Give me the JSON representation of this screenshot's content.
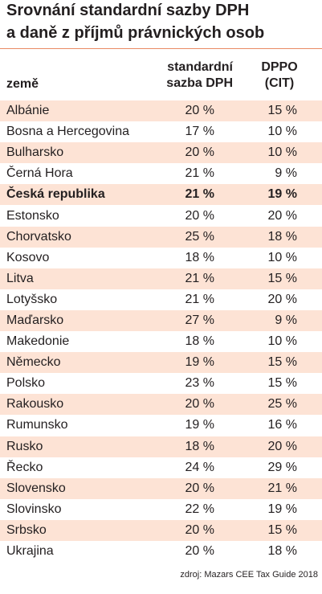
{
  "title": {
    "lines": [
      "Srovnání standardní sazby DPH",
      "a daně z příjmů právnických osob"
    ]
  },
  "colors": {
    "stripe": "#fde3d5",
    "rule": "#e98a64",
    "text": "#231f20"
  },
  "table": {
    "headers": {
      "country": "země",
      "vat": [
        "standardní",
        "sazba DPH"
      ],
      "cit": [
        "DPPO",
        "(CIT)"
      ]
    },
    "rows": [
      {
        "country": "Albánie",
        "vat": "20 %",
        "cit": "15 %"
      },
      {
        "country": "Bosna a Hercegovina",
        "vat": "17 %",
        "cit": "10 %"
      },
      {
        "country": "Bulharsko",
        "vat": "20 %",
        "cit": "10 %"
      },
      {
        "country": "Černá Hora",
        "vat": "21 %",
        "cit": "9 %"
      },
      {
        "country": "Česká republika",
        "vat": "21 %",
        "cit": "19 %",
        "emphasis": true
      },
      {
        "country": "Estonsko",
        "vat": "20 %",
        "cit": "20 %"
      },
      {
        "country": "Chorvatsko",
        "vat": "25 %",
        "cit": "18 %"
      },
      {
        "country": "Kosovo",
        "vat": "18 %",
        "cit": "10 %"
      },
      {
        "country": "Litva",
        "vat": "21 %",
        "cit": "15 %"
      },
      {
        "country": "Lotyšsko",
        "vat": "21 %",
        "cit": "20 %"
      },
      {
        "country": "Maďarsko",
        "vat": "27 %",
        "cit": "9 %"
      },
      {
        "country": "Makedonie",
        "vat": "18 %",
        "cit": "10 %"
      },
      {
        "country": "Německo",
        "vat": "19 %",
        "cit": "15 %"
      },
      {
        "country": "Polsko",
        "vat": "23 %",
        "cit": "15 %"
      },
      {
        "country": "Rakousko",
        "vat": "20 %",
        "cit": "25 %"
      },
      {
        "country": "Rumunsko",
        "vat": "19 %",
        "cit": "16 %"
      },
      {
        "country": "Rusko",
        "vat": "18 %",
        "cit": "20 %"
      },
      {
        "country": "Řecko",
        "vat": "24 %",
        "cit": "29 %"
      },
      {
        "country": "Slovensko",
        "vat": "20 %",
        "cit": "21 %"
      },
      {
        "country": "Slovinsko",
        "vat": "22 %",
        "cit": "19 %"
      },
      {
        "country": "Srbsko",
        "vat": "20 %",
        "cit": "15 %"
      },
      {
        "country": "Ukrajina",
        "vat": "20 %",
        "cit": "18 %"
      }
    ]
  },
  "source": "zdroj: Mazars CEE Tax Guide 2018"
}
